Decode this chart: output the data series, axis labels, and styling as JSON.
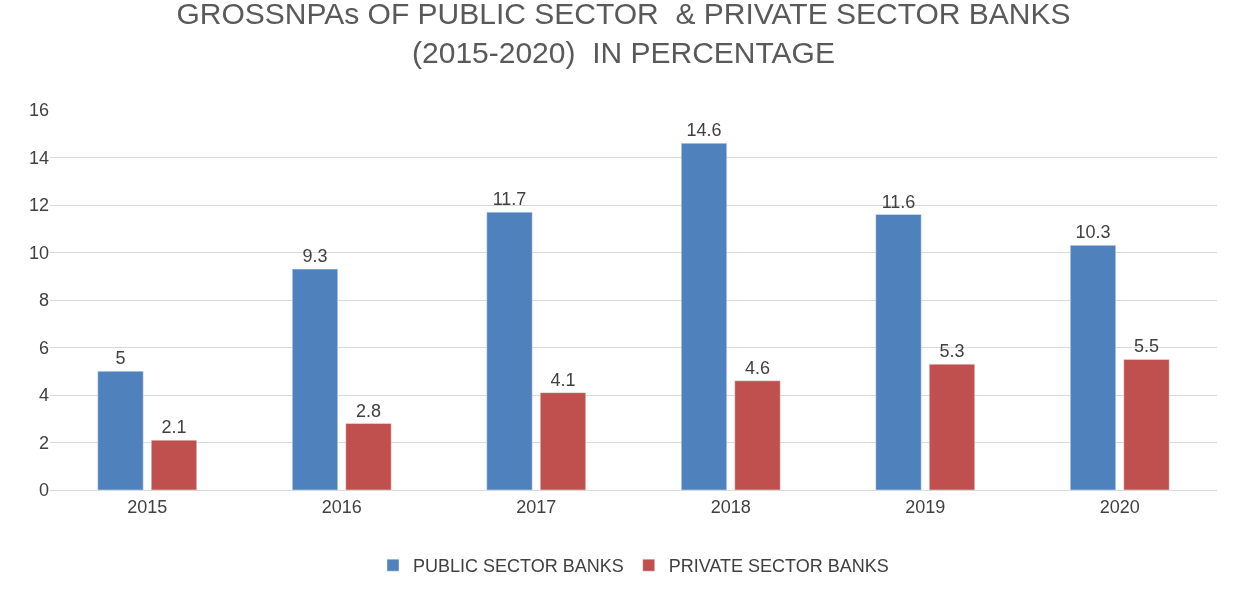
{
  "chart_data": {
    "type": "bar",
    "title": "GROSSNPAs OF PUBLIC SECTOR  & PRIVATE SECTOR BANKS\n(2015-2020)  IN PERCENTAGE",
    "categories": [
      "2015",
      "2016",
      "2017",
      "2018",
      "2019",
      "2020"
    ],
    "series": [
      {
        "name": "PUBLIC SECTOR BANKS",
        "color": "#4f81bd",
        "values": [
          5,
          9.3,
          11.7,
          14.6,
          11.6,
          10.3
        ]
      },
      {
        "name": "PRIVATE SECTOR BANKS",
        "color": "#c0504d",
        "values": [
          2.1,
          2.8,
          4.1,
          4.6,
          5.3,
          5.5
        ]
      }
    ],
    "ylim": [
      0,
      16
    ],
    "yticks": [
      0,
      2,
      4,
      6,
      8,
      10,
      12,
      14,
      16
    ],
    "grid": "y",
    "legend": "bottom",
    "data_labels": true
  }
}
